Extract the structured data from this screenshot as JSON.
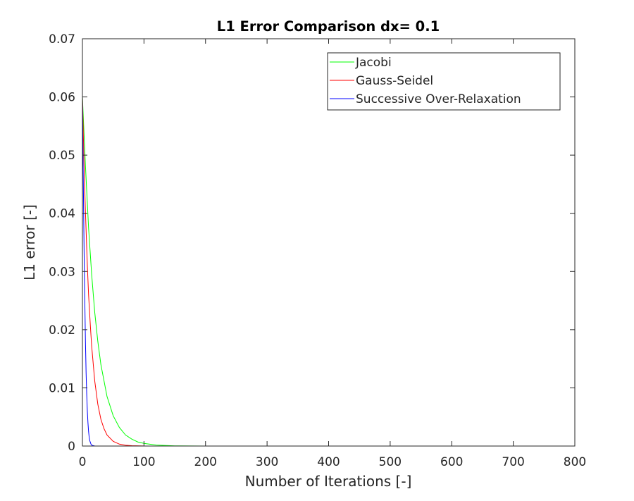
{
  "chart_data": {
    "type": "line",
    "title": "L1 Error Comparison dx= 0.1",
    "xlabel": "Number of Iterations [-]",
    "ylabel": "L1 error [-]",
    "xlim": [
      0,
      800
    ],
    "ylim": [
      0,
      0.07
    ],
    "xticks": [
      0,
      100,
      200,
      300,
      400,
      500,
      600,
      700,
      800
    ],
    "xtick_labels": [
      "0",
      "100",
      "200",
      "300",
      "400",
      "500",
      "600",
      "700",
      "800"
    ],
    "yticks": [
      0,
      0.01,
      0.02,
      0.03,
      0.04,
      0.05,
      0.06,
      0.07
    ],
    "ytick_labels": [
      "0",
      "0.01",
      "0.02",
      "0.03",
      "0.04",
      "0.05",
      "0.06",
      "0.07"
    ],
    "grid": false,
    "legend_position": "top-right",
    "series": [
      {
        "name": "Jacobi",
        "color": "#00ff00",
        "x": [
          0,
          5,
          10,
          15,
          20,
          25,
          30,
          40,
          50,
          60,
          70,
          80,
          90,
          100,
          120,
          150,
          200,
          300,
          400,
          500,
          600,
          700,
          800
        ],
        "y": [
          0.06,
          0.048,
          0.0375,
          0.0295,
          0.023,
          0.018,
          0.014,
          0.0085,
          0.0052,
          0.0032,
          0.0019,
          0.0012,
          0.0007,
          0.00045,
          0.00016,
          3e-05,
          2e-06,
          0,
          0,
          0,
          0,
          0,
          0
        ]
      },
      {
        "name": "Gauss-Seidel",
        "color": "#ff0000",
        "x": [
          0,
          3,
          5,
          8,
          10,
          13,
          15,
          20,
          25,
          30,
          35,
          40,
          50,
          60,
          70,
          80,
          100,
          150,
          200,
          300,
          400,
          500,
          600,
          700,
          800
        ],
        "y": [
          0.06,
          0.047,
          0.04,
          0.031,
          0.026,
          0.0205,
          0.0172,
          0.0112,
          0.0072,
          0.0046,
          0.003,
          0.0019,
          0.0008,
          0.00033,
          0.00014,
          6e-05,
          1e-05,
          0,
          0,
          0,
          0,
          0,
          0,
          0,
          0
        ]
      },
      {
        "name": "Successive Over-Relaxation",
        "color": "#0000ff",
        "x": [
          0,
          1,
          2,
          3,
          4,
          5,
          6,
          7,
          8,
          9,
          10,
          11,
          12,
          14,
          16,
          20,
          30,
          50,
          100,
          200,
          300,
          400,
          500,
          600,
          700,
          800
        ],
        "y": [
          0.06,
          0.05,
          0.04,
          0.031,
          0.024,
          0.0175,
          0.0125,
          0.0088,
          0.006,
          0.004,
          0.0025,
          0.0015,
          0.0009,
          0.0003,
          0.0001,
          1e-05,
          0,
          0,
          0,
          0,
          0,
          0,
          0,
          0,
          0,
          0
        ]
      }
    ]
  }
}
